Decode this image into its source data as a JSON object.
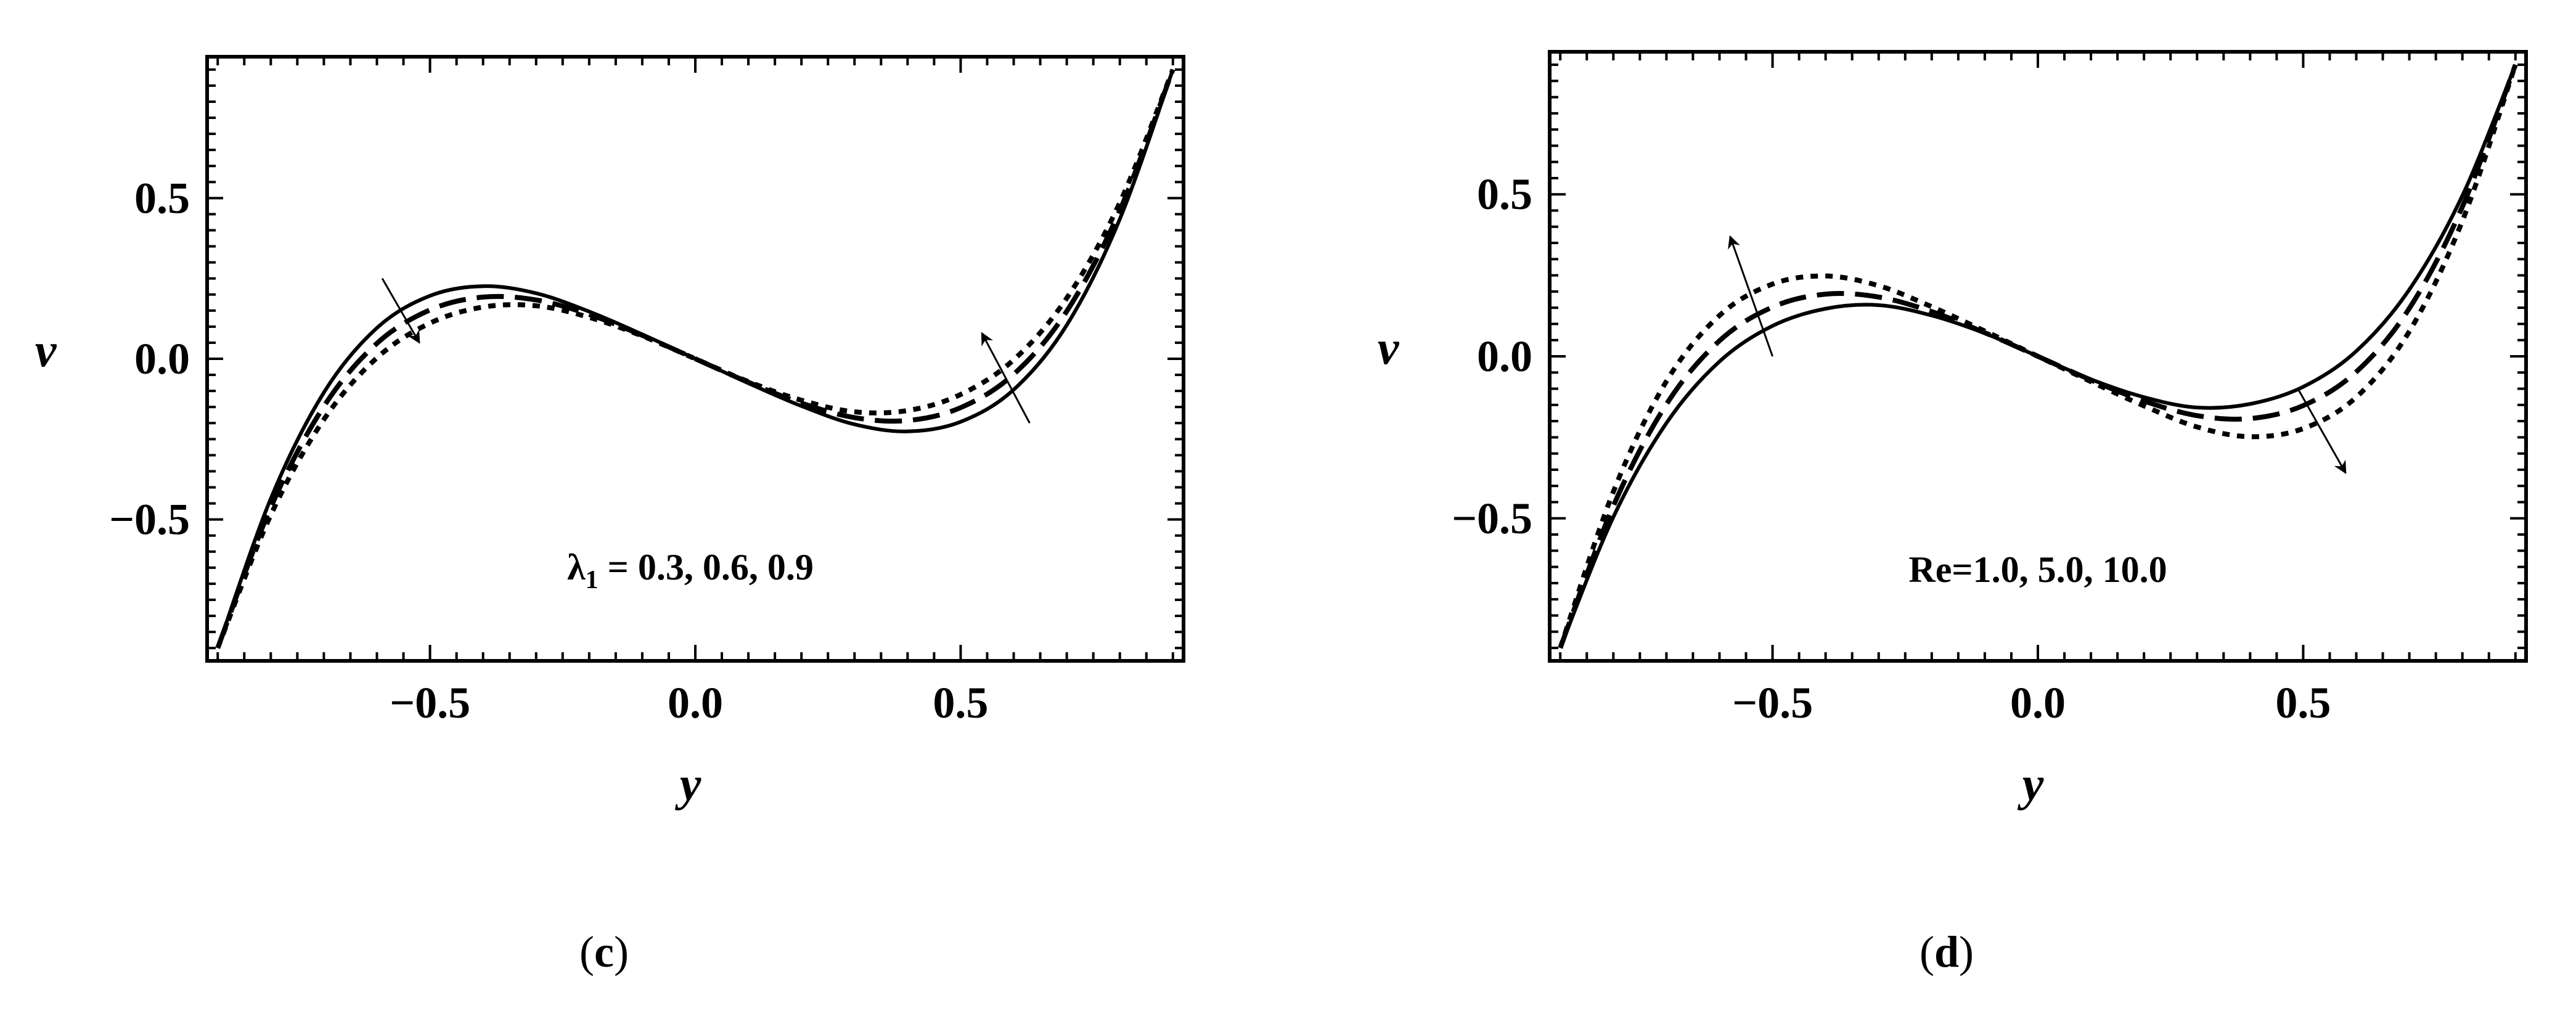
{
  "chart_data": [
    {
      "type": "line",
      "panel_label_open": "(",
      "panel_label_letter": "c",
      "panel_label_close": ")",
      "xlabel": "y",
      "ylabel": "v",
      "xlim": [
        -0.92,
        0.92
      ],
      "ylim": [
        -0.94,
        0.94
      ],
      "xticks": [
        -0.5,
        0.0,
        0.5
      ],
      "xtick_labels": [
        "−0.5",
        "0.0",
        "0.5"
      ],
      "yticks": [
        -0.5,
        0.0,
        0.5
      ],
      "ytick_labels": [
        "−0.5",
        "0.0",
        "0.5"
      ],
      "grid": false,
      "annotation": {
        "prefix": "λ",
        "subscript": "1",
        "text": " = 0.3,  0.6,  0.9"
      },
      "x": [
        -0.9,
        -0.8,
        -0.7,
        -0.6,
        -0.5,
        -0.4,
        -0.3,
        -0.2,
        -0.1,
        0.0,
        0.1,
        0.2,
        0.3,
        0.4,
        0.5,
        0.6,
        0.7,
        0.8,
        0.9
      ],
      "series": [
        {
          "style": "solid",
          "values": [
            -0.9,
            -0.435,
            -0.105,
            0.096,
            0.196,
            0.226,
            0.204,
            0.147,
            0.076,
            0.0,
            -0.076,
            -0.147,
            -0.204,
            -0.226,
            -0.196,
            -0.096,
            0.105,
            0.435,
            0.9
          ]
        },
        {
          "style": "dashed",
          "values": [
            -0.9,
            -0.462,
            -0.148,
            0.048,
            0.152,
            0.192,
            0.183,
            0.138,
            0.073,
            0.0,
            -0.073,
            -0.138,
            -0.183,
            -0.192,
            -0.152,
            -0.048,
            0.148,
            0.462,
            0.9
          ]
        },
        {
          "style": "dotted",
          "values": [
            -0.9,
            -0.486,
            -0.189,
            0.003,
            0.111,
            0.161,
            0.165,
            0.129,
            0.071,
            0.0,
            -0.071,
            -0.129,
            -0.165,
            -0.161,
            -0.111,
            -0.003,
            0.189,
            0.486,
            0.9
          ]
        }
      ],
      "arrows": [
        {
          "from": [
            -0.59,
            0.25
          ],
          "to": [
            -0.52,
            0.05
          ],
          "head": "end"
        },
        {
          "from": [
            0.63,
            -0.2
          ],
          "to": [
            0.54,
            0.08
          ],
          "head": "end"
        }
      ]
    },
    {
      "type": "line",
      "panel_label_open": "(",
      "panel_label_letter": "d",
      "panel_label_close": ")",
      "xlabel": "y",
      "ylabel": "v",
      "xlim": [
        -0.92,
        0.92
      ],
      "ylim": [
        -0.94,
        0.94
      ],
      "xticks": [
        -0.5,
        0.0,
        0.5
      ],
      "xtick_labels": [
        "−0.5",
        "0.0",
        "0.5"
      ],
      "yticks": [
        -0.5,
        0.0,
        0.5
      ],
      "ytick_labels": [
        "−0.5",
        "0.0",
        "0.5"
      ],
      "grid": false,
      "annotation": {
        "prefix": "",
        "subscript": "",
        "text": "Re=1.0, 5.0, 10.0"
      },
      "x": [
        -0.9,
        -0.8,
        -0.7,
        -0.6,
        -0.5,
        -0.4,
        -0.3,
        -0.2,
        -0.1,
        0.0,
        0.1,
        0.2,
        0.3,
        0.4,
        0.5,
        0.6,
        0.7,
        0.8,
        0.9
      ],
      "series": [
        {
          "style": "solid",
          "values": [
            -0.9,
            -0.496,
            -0.206,
            -0.016,
            0.094,
            0.147,
            0.158,
            0.126,
            0.071,
            0.0,
            -0.071,
            -0.126,
            -0.158,
            -0.147,
            -0.094,
            0.016,
            0.206,
            0.496,
            0.9
          ]
        },
        {
          "style": "dashed",
          "values": [
            -0.9,
            -0.462,
            -0.148,
            0.048,
            0.152,
            0.192,
            0.183,
            0.138,
            0.073,
            0.0,
            -0.073,
            -0.138,
            -0.183,
            -0.192,
            -0.152,
            -0.048,
            0.148,
            0.462,
            0.9
          ]
        },
        {
          "style": "dotted",
          "values": [
            -0.9,
            -0.418,
            -0.077,
            0.126,
            0.223,
            0.248,
            0.218,
            0.153,
            0.078,
            0.0,
            -0.078,
            -0.153,
            -0.218,
            -0.248,
            -0.223,
            -0.126,
            0.077,
            0.418,
            0.9
          ]
        }
      ],
      "arrows": [
        {
          "from": [
            -0.5,
            0.0
          ],
          "to": [
            -0.58,
            0.37
          ],
          "head": "end"
        },
        {
          "from": [
            0.49,
            -0.1
          ],
          "to": [
            0.58,
            -0.36
          ],
          "head": "end"
        }
      ]
    }
  ]
}
